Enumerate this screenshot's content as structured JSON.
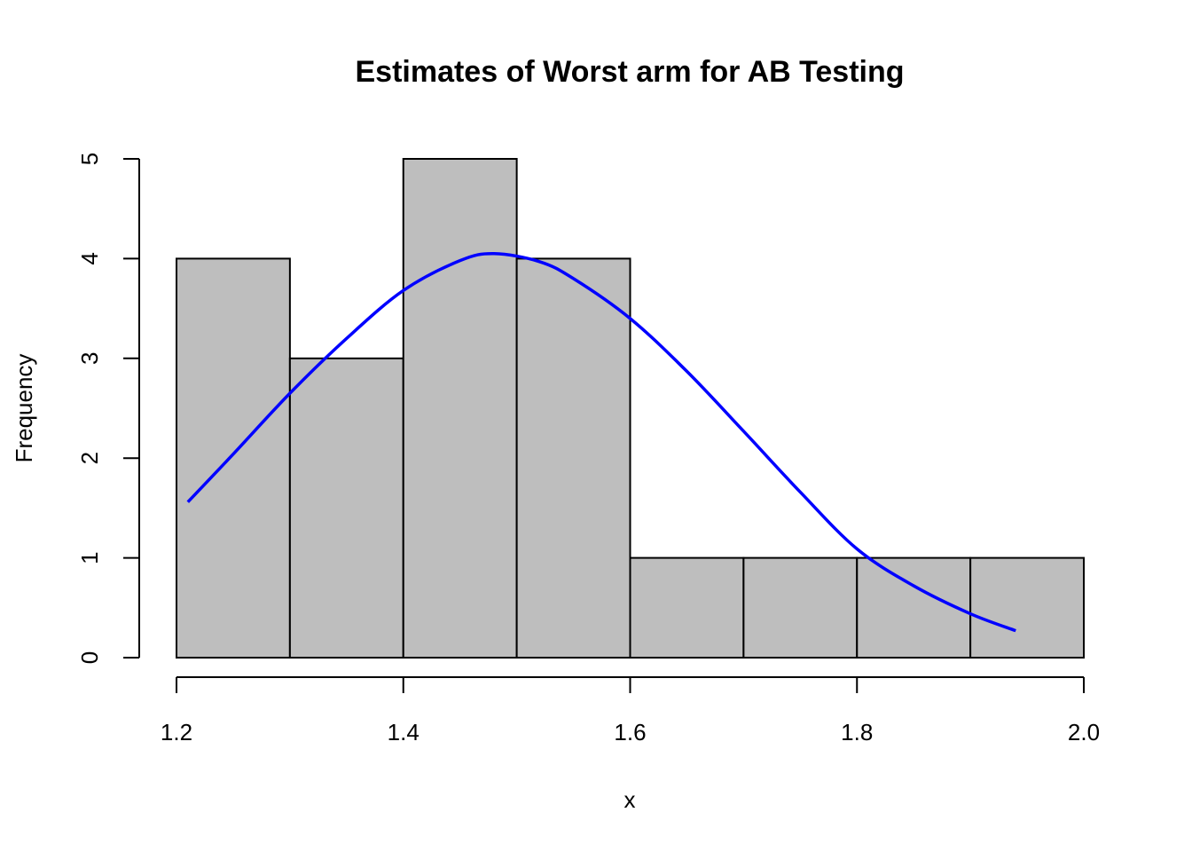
{
  "chart_data": {
    "type": "bar",
    "title": "Estimates of Worst arm for AB Testing",
    "xlabel": "x",
    "ylabel": "Frequency",
    "bins": [
      {
        "from": 1.2,
        "to": 1.3,
        "count": 4
      },
      {
        "from": 1.3,
        "to": 1.4,
        "count": 3
      },
      {
        "from": 1.4,
        "to": 1.5,
        "count": 5
      },
      {
        "from": 1.5,
        "to": 1.6,
        "count": 4
      },
      {
        "from": 1.6,
        "to": 1.7,
        "count": 1
      },
      {
        "from": 1.7,
        "to": 1.8,
        "count": 1
      },
      {
        "from": 1.8,
        "to": 1.9,
        "count": 1
      },
      {
        "from": 1.9,
        "to": 2.0,
        "count": 1
      }
    ],
    "xlim": [
      1.2,
      2.0
    ],
    "ylim": [
      0,
      5
    ],
    "x_ticks": [
      "1.2",
      "1.4",
      "1.6",
      "1.8",
      "2.0"
    ],
    "y_ticks": [
      "0",
      "1",
      "2",
      "3",
      "4",
      "5"
    ],
    "overlay_curve": {
      "type": "normal_density_scaled",
      "color": "#0000ff",
      "points": [
        [
          1.21,
          1.56
        ],
        [
          1.25,
          2.04
        ],
        [
          1.3,
          2.65
        ],
        [
          1.35,
          3.2
        ],
        [
          1.4,
          3.68
        ],
        [
          1.45,
          3.98
        ],
        [
          1.48,
          4.05
        ],
        [
          1.52,
          3.97
        ],
        [
          1.55,
          3.8
        ],
        [
          1.6,
          3.4
        ],
        [
          1.65,
          2.87
        ],
        [
          1.7,
          2.27
        ],
        [
          1.75,
          1.66
        ],
        [
          1.8,
          1.09
        ],
        [
          1.85,
          0.72
        ],
        [
          1.9,
          0.44
        ],
        [
          1.94,
          0.27
        ]
      ]
    },
    "bar_color": "#bebebe",
    "grid": false
  }
}
